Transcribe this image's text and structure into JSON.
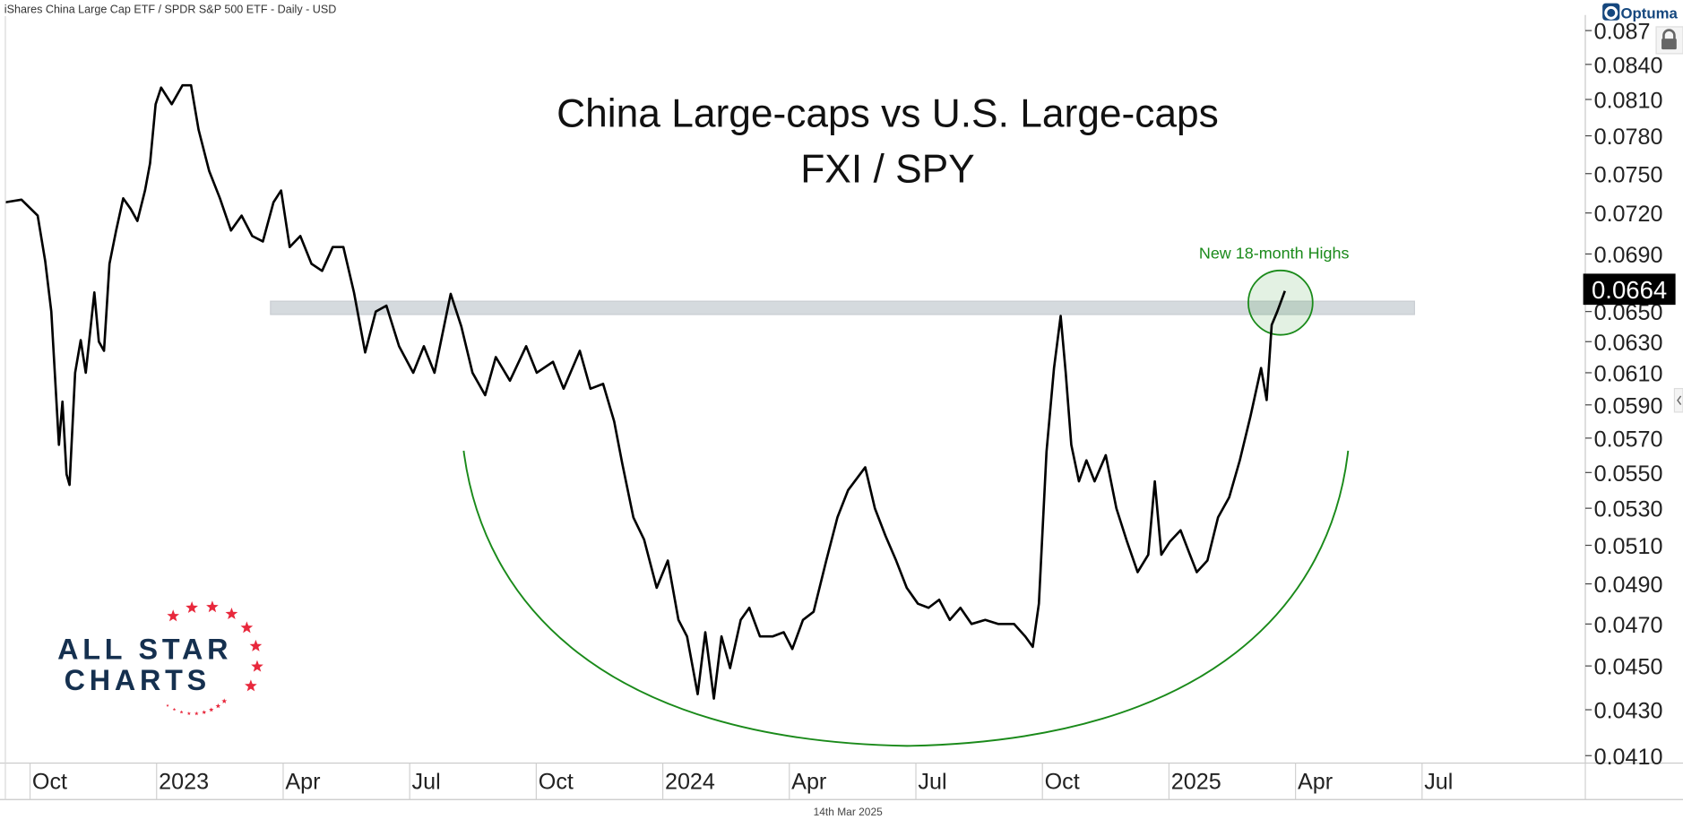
{
  "header": {
    "instrument": "iShares China Large Cap ETF / SPDR S&P 500 ETF - Daily - USD"
  },
  "brand": {
    "optuma": "Optuma",
    "logo_line1": "ALL STAR",
    "logo_line2": "CHARTS"
  },
  "footer": {
    "date": "14th Mar 2025"
  },
  "colors": {
    "line": "#000000",
    "annotation": "#1a8a1a",
    "band": "#d5dade",
    "logo_navy": "#15304f",
    "logo_red": "#e8283c"
  },
  "chart_data": {
    "type": "line",
    "title": "China Large-caps vs U.S. Large-caps",
    "subtitle": "FXI / SPY",
    "xlabel": "",
    "ylabel": "",
    "y_scale": "log",
    "ylim": [
      0.0405,
      0.0875
    ],
    "xlim": [
      2022.7,
      2025.85
    ],
    "x_unit": "decimal year",
    "last_value": "0.0664",
    "annotation": "New 18-month Highs",
    "resistance_band": [
      0.0648,
      0.0657
    ],
    "x_ticks": [
      {
        "label": "Oct",
        "x": 2022.75
      },
      {
        "label": "2023",
        "x": 2023.0
      },
      {
        "label": "Apr",
        "x": 2023.25
      },
      {
        "label": "Jul",
        "x": 2023.5
      },
      {
        "label": "Oct",
        "x": 2023.75
      },
      {
        "label": "2024",
        "x": 2024.0
      },
      {
        "label": "Apr",
        "x": 2024.25
      },
      {
        "label": "Jul",
        "x": 2024.5
      },
      {
        "label": "Oct",
        "x": 2024.75
      },
      {
        "label": "2025",
        "x": 2025.0
      },
      {
        "label": "Apr",
        "x": 2025.25
      },
      {
        "label": "Jul",
        "x": 2025.5
      }
    ],
    "y_ticks": [
      "0.087",
      "0.0840",
      "0.0810",
      "0.0780",
      "0.0750",
      "0.0720",
      "0.0690",
      "0.0650",
      "0.0630",
      "0.0610",
      "0.0590",
      "0.0570",
      "0.0550",
      "0.0530",
      "0.0510",
      "0.0490",
      "0.0470",
      "0.0450",
      "0.0430",
      "0.0410"
    ],
    "series": [
      {
        "name": "FXI / SPY",
        "points": [
          [
            2022.701,
            0.0728
          ],
          [
            2022.733,
            0.073
          ],
          [
            2022.765,
            0.0718
          ],
          [
            2022.78,
            0.0685
          ],
          [
            2022.792,
            0.065
          ],
          [
            2022.807,
            0.0566
          ],
          [
            2022.814,
            0.0592
          ],
          [
            2022.822,
            0.0549
          ],
          [
            2022.828,
            0.0543
          ],
          [
            2022.839,
            0.061
          ],
          [
            2022.85,
            0.0631
          ],
          [
            2022.86,
            0.061
          ],
          [
            2022.877,
            0.0663
          ],
          [
            2022.886,
            0.063
          ],
          [
            2022.896,
            0.0624
          ],
          [
            2022.907,
            0.0683
          ],
          [
            2022.92,
            0.0707
          ],
          [
            2022.934,
            0.0731
          ],
          [
            2022.949,
            0.0723
          ],
          [
            2022.962,
            0.0714
          ],
          [
            2022.977,
            0.0737
          ],
          [
            2022.987,
            0.0758
          ],
          [
            2022.998,
            0.0806
          ],
          [
            2023.009,
            0.082
          ],
          [
            2023.03,
            0.0806
          ],
          [
            2023.051,
            0.0822
          ],
          [
            2023.068,
            0.0822
          ],
          [
            2023.083,
            0.0785
          ],
          [
            2023.104,
            0.0752
          ],
          [
            2023.125,
            0.0731
          ],
          [
            2023.147,
            0.0707
          ],
          [
            2023.168,
            0.0718
          ],
          [
            2023.189,
            0.0703
          ],
          [
            2023.21,
            0.0699
          ],
          [
            2023.231,
            0.0728
          ],
          [
            2023.246,
            0.0737
          ],
          [
            2023.263,
            0.0695
          ],
          [
            2023.284,
            0.0703
          ],
          [
            2023.306,
            0.0683
          ],
          [
            2023.327,
            0.0678
          ],
          [
            2023.348,
            0.0695
          ],
          [
            2023.369,
            0.0695
          ],
          [
            2023.39,
            0.0663
          ],
          [
            2023.412,
            0.0623
          ],
          [
            2023.433,
            0.065
          ],
          [
            2023.454,
            0.0654
          ],
          [
            2023.479,
            0.0627
          ],
          [
            2023.507,
            0.061
          ],
          [
            2023.528,
            0.0627
          ],
          [
            2023.549,
            0.061
          ],
          [
            2023.581,
            0.0662
          ],
          [
            2023.602,
            0.064
          ],
          [
            2023.624,
            0.061
          ],
          [
            2023.649,
            0.0596
          ],
          [
            2023.67,
            0.062
          ],
          [
            2023.698,
            0.0605
          ],
          [
            2023.73,
            0.0627
          ],
          [
            2023.751,
            0.061
          ],
          [
            2023.783,
            0.0617
          ],
          [
            2023.804,
            0.06
          ],
          [
            2023.836,
            0.0624
          ],
          [
            2023.857,
            0.06
          ],
          [
            2023.882,
            0.0603
          ],
          [
            2023.904,
            0.058
          ],
          [
            2023.92,
            0.0555
          ],
          [
            2023.942,
            0.0525
          ],
          [
            2023.963,
            0.0513
          ],
          [
            2023.988,
            0.0488
          ],
          [
            2024.01,
            0.0502
          ],
          [
            2024.031,
            0.0472
          ],
          [
            2024.048,
            0.0464
          ],
          [
            2024.069,
            0.0437
          ],
          [
            2024.084,
            0.0466
          ],
          [
            2024.101,
            0.0435
          ],
          [
            2024.116,
            0.0464
          ],
          [
            2024.133,
            0.0449
          ],
          [
            2024.154,
            0.0472
          ],
          [
            2024.171,
            0.0478
          ],
          [
            2024.192,
            0.0464
          ],
          [
            2024.217,
            0.0464
          ],
          [
            2024.239,
            0.0466
          ],
          [
            2024.256,
            0.0458
          ],
          [
            2024.277,
            0.0472
          ],
          [
            2024.298,
            0.0476
          ],
          [
            2024.323,
            0.0502
          ],
          [
            2024.345,
            0.0525
          ],
          [
            2024.366,
            0.054
          ],
          [
            2024.4,
            0.0553
          ],
          [
            2024.419,
            0.053
          ],
          [
            2024.44,
            0.0515
          ],
          [
            2024.461,
            0.0502
          ],
          [
            2024.482,
            0.0488
          ],
          [
            2024.504,
            0.048
          ],
          [
            2024.525,
            0.0478
          ],
          [
            2024.546,
            0.0482
          ],
          [
            2024.567,
            0.0472
          ],
          [
            2024.588,
            0.0478
          ],
          [
            2024.61,
            0.047
          ],
          [
            2024.637,
            0.0472
          ],
          [
            2024.663,
            0.047
          ],
          [
            2024.694,
            0.047
          ],
          [
            2024.716,
            0.0464
          ],
          [
            2024.731,
            0.0459
          ],
          [
            2024.743,
            0.048
          ],
          [
            2024.758,
            0.0562
          ],
          [
            2024.773,
            0.0613
          ],
          [
            2024.786,
            0.0647
          ],
          [
            2024.796,
            0.061
          ],
          [
            2024.807,
            0.0566
          ],
          [
            2024.822,
            0.0545
          ],
          [
            2024.837,
            0.0557
          ],
          [
            2024.853,
            0.0545
          ],
          [
            2024.875,
            0.056
          ],
          [
            2024.896,
            0.053
          ],
          [
            2024.917,
            0.0512
          ],
          [
            2024.938,
            0.0496
          ],
          [
            2024.959,
            0.0505
          ],
          [
            2024.972,
            0.0545
          ],
          [
            2024.985,
            0.0505
          ],
          [
            2025.002,
            0.0512
          ],
          [
            2025.023,
            0.0518
          ],
          [
            2025.04,
            0.0506
          ],
          [
            2025.055,
            0.0496
          ],
          [
            2025.076,
            0.0502
          ],
          [
            2025.097,
            0.0525
          ],
          [
            2025.119,
            0.0536
          ],
          [
            2025.14,
            0.0557
          ],
          [
            2025.161,
            0.0583
          ],
          [
            2025.182,
            0.0613
          ],
          [
            2025.193,
            0.0593
          ],
          [
            2025.203,
            0.0641
          ],
          [
            2025.214,
            0.065
          ],
          [
            2025.229,
            0.0664
          ]
        ]
      }
    ]
  }
}
